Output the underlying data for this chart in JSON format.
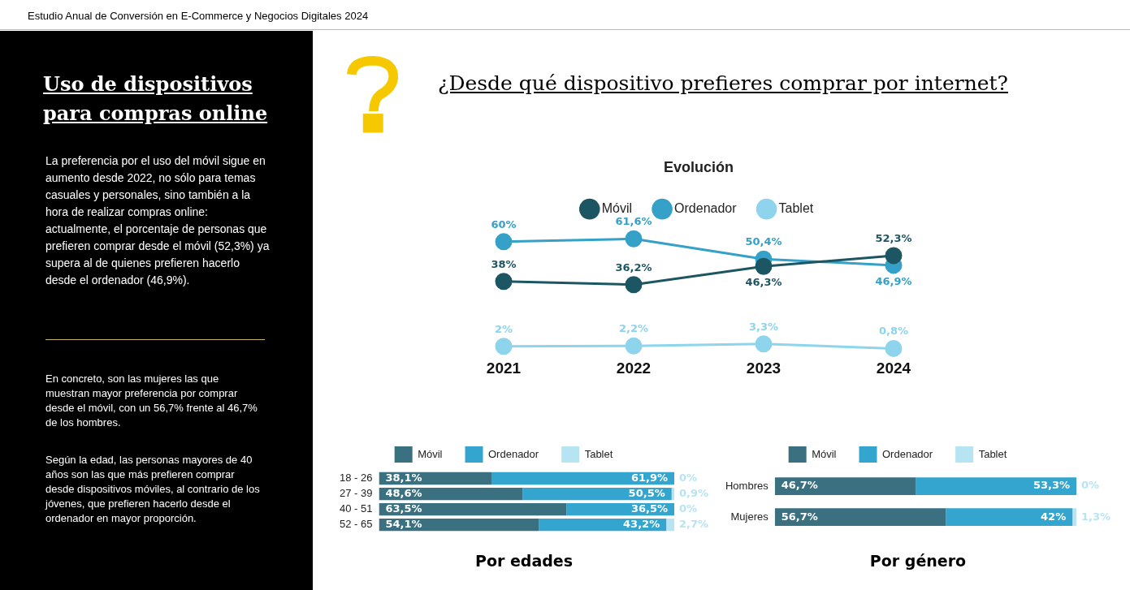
{
  "chart_data": [
    {
      "type": "other",
      "subtitle": "Estudio Anual de Conversión en E-Commerce y Negocios Digitales 2024",
      "title": "Uso de dispositivos para compras online",
      "annotations": [
        "La preferencia por el uso del móvil sigue en aumento desde 2022, no sólo para temas casuales y personales, sino también a la hora de realizar compras online: actualmente, el porcentaje de personas que prefieren comprar desde el móvil (52,3%) ya supera al de quienes prefieren hacerlo desde el ordenador (46,9%).",
        "En concreto, son las mujeres las que muestran mayor preferencia por comprar desde el móvil, con un 56,7% frente al 46,7% de los hombres.",
        "Según la edad, las personas mayores de 40 años son las que más prefieren comprar desde dispositivos móviles, al contrario de los jóvenes, que prefieren hacerlo desde el ordenador en mayor proporción."
      ]
    },
    {
      "type": "line",
      "title": "¿Desde qué dispositivo prefieres comprar por internet?",
      "legend_title": "Evolución",
      "legend": "top",
      "marker": "circle",
      "grid": false,
      "tick_labels": "x",
      "categories": [
        "2021",
        "2022",
        "2023",
        "2024"
      ],
      "series": [
        {
          "name": "Móvil",
          "color": "#1d5663",
          "values": [
            38,
            36.2,
            46.3,
            52.3
          ],
          "value_labels": [
            "38%",
            "36,2%",
            "46,3%",
            "52,3%"
          ]
        },
        {
          "name": "Ordenador",
          "color": "#35a0c8",
          "values": [
            60,
            61.6,
            50.4,
            46.9
          ],
          "value_labels": [
            "60%",
            "61,6%",
            "50,4%",
            "46,9%"
          ]
        },
        {
          "name": "Tablet",
          "color": "#8dd4ec",
          "values": [
            2,
            2.2,
            3.3,
            0.8
          ],
          "value_labels": [
            "2%",
            "2,2%",
            "3,3%",
            "0,8%"
          ]
        }
      ]
    },
    {
      "type": "bar",
      "title": "Por edades",
      "orientation": "horizontal",
      "stacked": true,
      "legend": "top",
      "grid": false,
      "tick_labels": "y",
      "categories": [
        "18 - 26",
        "27 - 39",
        "40 - 51",
        "52 - 65"
      ],
      "series": [
        {
          "name": "Móvil",
          "color": "#3a7080",
          "values": [
            38.1,
            48.6,
            63.5,
            54.1
          ],
          "value_labels": [
            "38,1%",
            "48,6%",
            "63,5%",
            "54,1%"
          ]
        },
        {
          "name": "Ordenador",
          "color": "#34a5cf",
          "values": [
            61.9,
            50.5,
            36.5,
            43.2
          ],
          "value_labels": [
            "61,9%",
            "50,5%",
            "36,5%",
            "43,2%"
          ]
        },
        {
          "name": "Tablet",
          "color": "#b6e4f3",
          "values": [
            0,
            0.9,
            0,
            2.7
          ],
          "value_labels": [
            "0%",
            "0,9%",
            "0%",
            "2,7%"
          ]
        }
      ]
    },
    {
      "type": "bar",
      "title": "Por género",
      "orientation": "horizontal",
      "stacked": true,
      "legend": "top",
      "grid": false,
      "tick_labels": "y",
      "categories": [
        "Hombres",
        "Mujeres"
      ],
      "series": [
        {
          "name": "Móvil",
          "color": "#3a7080",
          "values": [
            46.7,
            56.7
          ],
          "value_labels": [
            "46,7%",
            "56,7%"
          ]
        },
        {
          "name": "Ordenador",
          "color": "#34a5cf",
          "values": [
            53.3,
            42
          ],
          "value_labels": [
            "53,3%",
            "42%"
          ]
        },
        {
          "name": "Tablet",
          "color": "#b6e4f3",
          "values": [
            0,
            1.3
          ],
          "value_labels": [
            "0%",
            "1,3%"
          ]
        }
      ]
    }
  ]
}
